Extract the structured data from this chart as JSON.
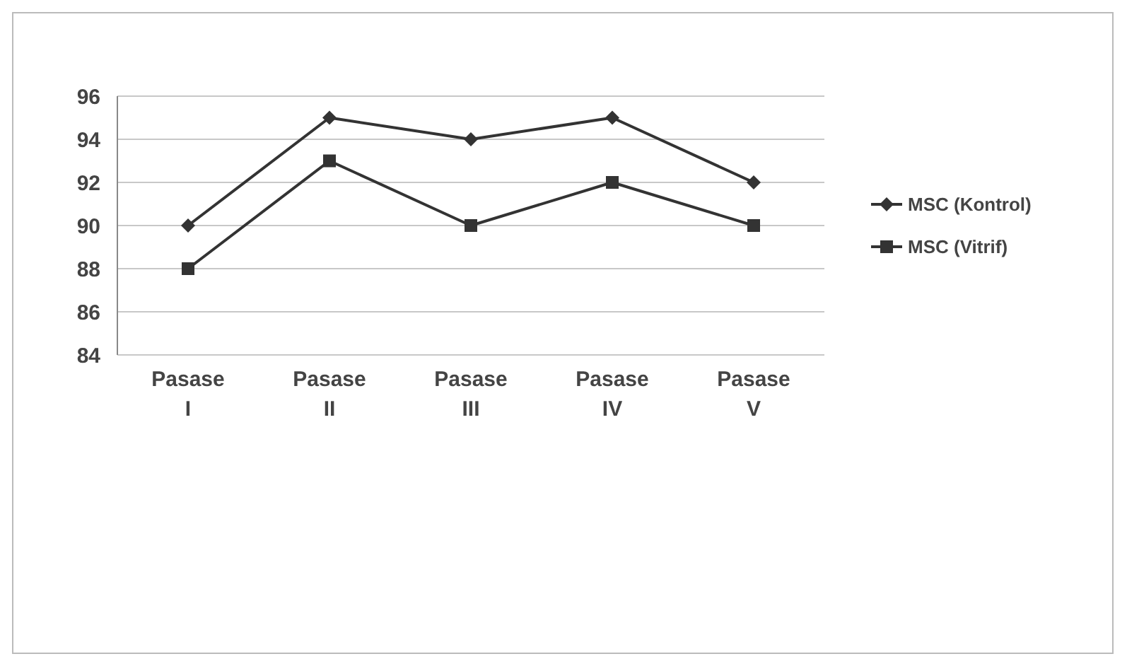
{
  "chart_data": {
    "type": "line",
    "categories": [
      "Pasase I",
      "Pasase II",
      "Pasase III",
      "Pasase IV",
      "Pasase V"
    ],
    "series": [
      {
        "name": "MSC (Kontrol)",
        "color": "#333333",
        "marker": "diamond",
        "values": [
          90,
          95,
          94,
          95,
          92
        ]
      },
      {
        "name": "MSC (Vitrif)",
        "color": "#333333",
        "marker": "square",
        "values": [
          88,
          93,
          90,
          92,
          90
        ]
      }
    ],
    "ylim": [
      84,
      96
    ],
    "yticks": [
      84,
      86,
      88,
      90,
      92,
      94,
      96
    ],
    "grid": "y",
    "legend": "right"
  }
}
